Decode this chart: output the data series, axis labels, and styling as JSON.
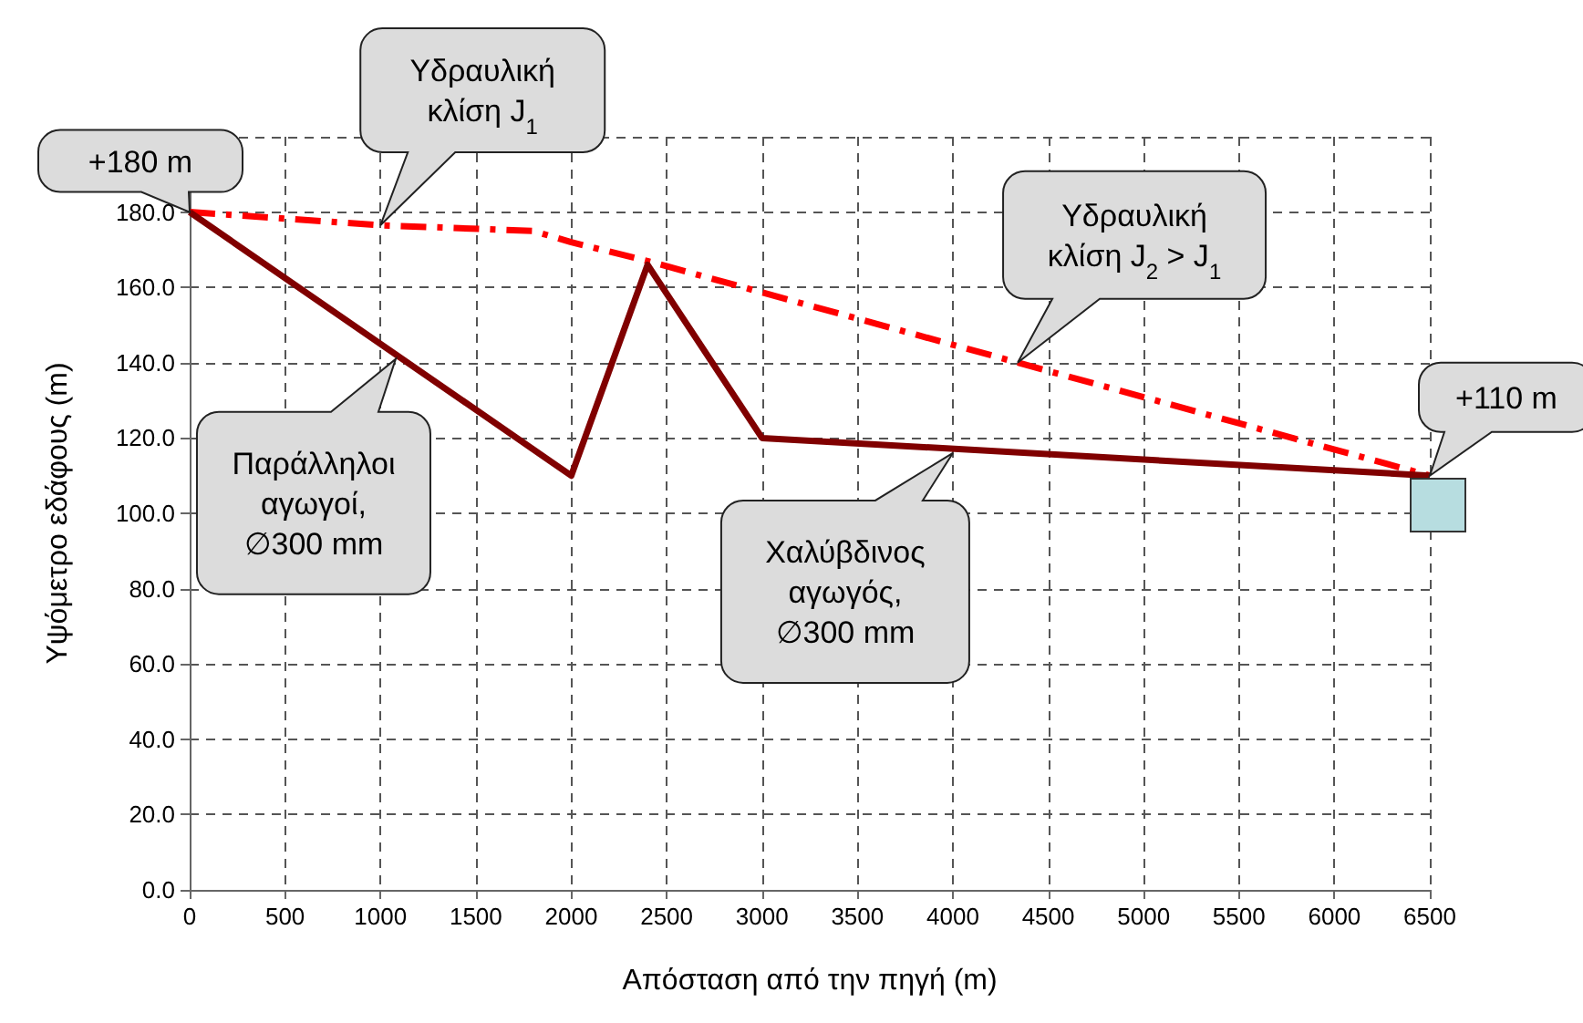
{
  "chart_data": {
    "type": "line",
    "xlabel": "Απόσταση από την πηγή (m)",
    "ylabel": "Υψόμετρο εδάφους (m)",
    "xlim": [
      0,
      6500
    ],
    "xticks": [
      0,
      500,
      1000,
      1500,
      2000,
      2500,
      3000,
      3500,
      4000,
      4500,
      5000,
      5500,
      6000,
      6500
    ],
    "ylim": [
      0,
      200
    ],
    "yticks": [
      {
        "value": 0,
        "label": "0.0"
      },
      {
        "value": 20,
        "label": "20.0"
      },
      {
        "value": 40,
        "label": "40.0"
      },
      {
        "value": 60,
        "label": "60.0"
      },
      {
        "value": 80,
        "label": "80.0"
      },
      {
        "value": 100,
        "label": "100.0"
      },
      {
        "value": 120,
        "label": "120.0"
      },
      {
        "value": 140,
        "label": "140.0"
      },
      {
        "value": 160,
        "label": "160.0"
      },
      {
        "value": 180,
        "label": "180.0"
      },
      {
        "value": 200,
        "label": null
      }
    ],
    "grid": true,
    "marker": "none",
    "series": [
      {
        "color": "#ff0000",
        "line_style": "dashed",
        "x": [
          0,
          1000,
          1800,
          2000,
          2400,
          6500
        ],
        "values": [
          180,
          176.5,
          175,
          172,
          167,
          110
        ]
      },
      {
        "color": "#800000",
        "line_style": "solid",
        "x": [
          0,
          2000,
          2400,
          3000,
          6500
        ],
        "values": [
          180,
          110,
          166,
          120,
          110
        ]
      }
    ],
    "annotations": [
      {
        "text": "+180 m",
        "x": 0,
        "y": 180
      },
      {
        "text": "Υδραυλική\nκλίση J$_{1}$",
        "x": 1000,
        "y": 176.5
      },
      {
        "text": "Υδραυλική\nκλίση J$_{2}$ > J$_{1}$",
        "x": 4340,
        "y": 140
      },
      {
        "text": "+110 m",
        "x": 6500,
        "y": 110
      },
      {
        "text": "Παράλληλοι\nαγωγοί,\n∅300 mm",
        "x": 1080,
        "y": 141
      },
      {
        "text": "Χαλύβδινος\nαγωγός,\n∅300 mm",
        "x": 4000,
        "y": 116
      }
    ]
  }
}
